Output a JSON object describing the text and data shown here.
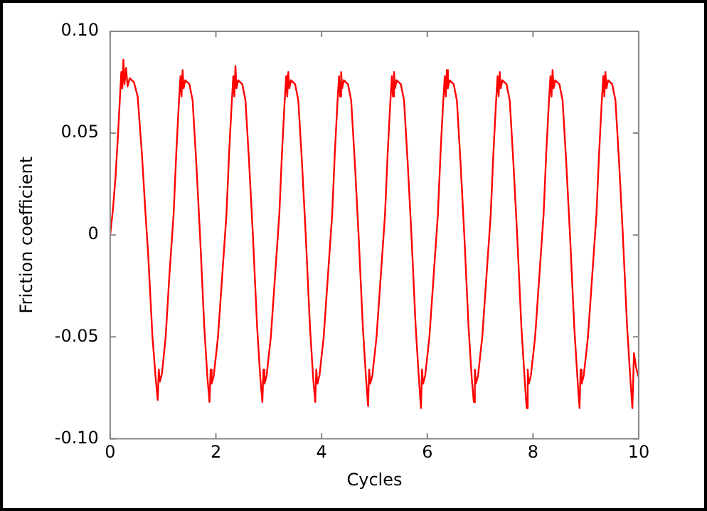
{
  "chart_data": {
    "type": "line",
    "xlabel": "Cycles",
    "ylabel": "Friction coefficient",
    "xlim": [
      0,
      10
    ],
    "xticks": [
      0,
      2,
      4,
      6,
      8,
      10
    ],
    "ylim": [
      -0.1,
      0.1
    ],
    "yticks": [
      {
        "value": -0.1,
        "label": "-0.10"
      },
      {
        "value": -0.05,
        "label": "-0.05"
      },
      0,
      {
        "value": 0.05,
        "label": "0.05"
      },
      {
        "value": 0.1,
        "label": "0.10"
      }
    ],
    "grid": false,
    "legend": false,
    "marker": "none",
    "line_style": "solid",
    "series": [
      {
        "color": "#ff0000",
        "x": [
          0,
          0.05,
          0.1,
          0.15,
          0.19,
          0.21,
          0.23,
          0.25,
          0.27,
          0.3,
          0.33,
          0.37,
          0.45,
          0.52,
          0.6,
          0.67,
          0.72,
          0.8,
          0.86,
          0.9,
          0.92,
          0.94,
          0.98,
          1.05,
          1.12,
          1.2,
          1.25,
          1.3,
          1.33,
          1.35,
          1.37,
          1.39,
          1.42,
          1.5,
          1.56,
          1.63,
          1.7,
          1.78,
          1.84,
          1.88,
          1.9,
          1.92,
          1.96,
          2.04,
          2.12,
          2.2,
          2.25,
          2.3,
          2.33,
          2.35,
          2.37,
          2.39,
          2.42,
          2.5,
          2.56,
          2.63,
          2.7,
          2.78,
          2.84,
          2.88,
          2.9,
          2.92,
          2.96,
          3.04,
          3.12,
          3.2,
          3.25,
          3.3,
          3.33,
          3.35,
          3.37,
          3.39,
          3.42,
          3.5,
          3.56,
          3.63,
          3.7,
          3.78,
          3.84,
          3.88,
          3.9,
          3.92,
          3.96,
          4.04,
          4.12,
          4.2,
          4.25,
          4.3,
          4.33,
          4.35,
          4.37,
          4.39,
          4.42,
          4.5,
          4.56,
          4.63,
          4.7,
          4.78,
          4.84,
          4.88,
          4.9,
          4.92,
          4.96,
          5.04,
          5.12,
          5.2,
          5.25,
          5.3,
          5.33,
          5.35,
          5.37,
          5.39,
          5.42,
          5.5,
          5.56,
          5.63,
          5.7,
          5.78,
          5.84,
          5.88,
          5.9,
          5.92,
          5.96,
          6.04,
          6.12,
          6.2,
          6.25,
          6.3,
          6.33,
          6.35,
          6.37,
          6.39,
          6.42,
          6.5,
          6.56,
          6.63,
          6.7,
          6.78,
          6.84,
          6.88,
          6.9,
          6.92,
          6.96,
          7.04,
          7.12,
          7.2,
          7.25,
          7.3,
          7.33,
          7.35,
          7.37,
          7.39,
          7.42,
          7.5,
          7.56,
          7.63,
          7.7,
          7.78,
          7.84,
          7.88,
          7.9,
          7.92,
          7.96,
          8.04,
          8.12,
          8.2,
          8.25,
          8.3,
          8.33,
          8.35,
          8.37,
          8.39,
          8.42,
          8.5,
          8.56,
          8.63,
          8.7,
          8.78,
          8.84,
          8.88,
          8.9,
          8.92,
          8.96,
          9.04,
          9.12,
          9.2,
          9.25,
          9.3,
          9.33,
          9.35,
          9.37,
          9.39,
          9.42,
          9.5,
          9.56,
          9.63,
          9.7,
          9.78,
          9.84,
          9.88,
          9.91,
          9.95,
          10
        ],
        "values": [
          0,
          0.012,
          0.028,
          0.05,
          0.07,
          0.08,
          0.072,
          0.086,
          0.074,
          0.082,
          0.073,
          0.077,
          0.075,
          0.068,
          0.04,
          0.01,
          -0.01,
          -0.05,
          -0.07,
          -0.081,
          -0.066,
          -0.072,
          -0.068,
          -0.05,
          -0.02,
          0.01,
          0.04,
          0.065,
          0.078,
          0.068,
          0.081,
          0.072,
          0.076,
          0.074,
          0.066,
          0.035,
          0,
          -0.045,
          -0.07,
          -0.082,
          -0.066,
          -0.073,
          -0.069,
          -0.05,
          -0.02,
          0.01,
          0.04,
          0.065,
          0.078,
          0.068,
          0.083,
          0.072,
          0.076,
          0.074,
          0.066,
          0.035,
          0,
          -0.045,
          -0.07,
          -0.082,
          -0.066,
          -0.073,
          -0.069,
          -0.05,
          -0.02,
          0.01,
          0.04,
          0.065,
          0.078,
          0.068,
          0.08,
          0.072,
          0.076,
          0.074,
          0.066,
          0.035,
          0,
          -0.045,
          -0.07,
          -0.082,
          -0.066,
          -0.073,
          -0.069,
          -0.05,
          -0.02,
          0.01,
          0.04,
          0.065,
          0.078,
          0.068,
          0.08,
          0.072,
          0.076,
          0.074,
          0.066,
          0.035,
          0,
          -0.045,
          -0.07,
          -0.084,
          -0.066,
          -0.073,
          -0.069,
          -0.05,
          -0.02,
          0.01,
          0.04,
          0.065,
          0.078,
          0.068,
          0.08,
          0.072,
          0.076,
          0.074,
          0.066,
          0.035,
          0,
          -0.045,
          -0.07,
          -0.085,
          -0.066,
          -0.073,
          -0.069,
          -0.05,
          -0.02,
          0.01,
          0.04,
          0.065,
          0.078,
          0.068,
          0.081,
          0.072,
          0.076,
          0.074,
          0.066,
          0.035,
          0,
          -0.045,
          -0.07,
          -0.082,
          -0.066,
          -0.073,
          -0.069,
          -0.05,
          -0.02,
          0.01,
          0.04,
          0.065,
          0.078,
          0.068,
          0.08,
          0.072,
          0.076,
          0.074,
          0.066,
          0.035,
          0,
          -0.045,
          -0.07,
          -0.085,
          -0.066,
          -0.073,
          -0.069,
          -0.05,
          -0.02,
          0.01,
          0.04,
          0.065,
          0.078,
          0.068,
          0.081,
          0.072,
          0.076,
          0.074,
          0.066,
          0.035,
          0,
          -0.045,
          -0.07,
          -0.085,
          -0.066,
          -0.073,
          -0.069,
          -0.05,
          -0.02,
          0.01,
          0.04,
          0.065,
          0.078,
          0.068,
          0.08,
          0.072,
          0.076,
          0.074,
          0.066,
          0.035,
          0,
          -0.045,
          -0.07,
          -0.085,
          -0.058,
          -0.065,
          -0.07
        ]
      }
    ]
  }
}
